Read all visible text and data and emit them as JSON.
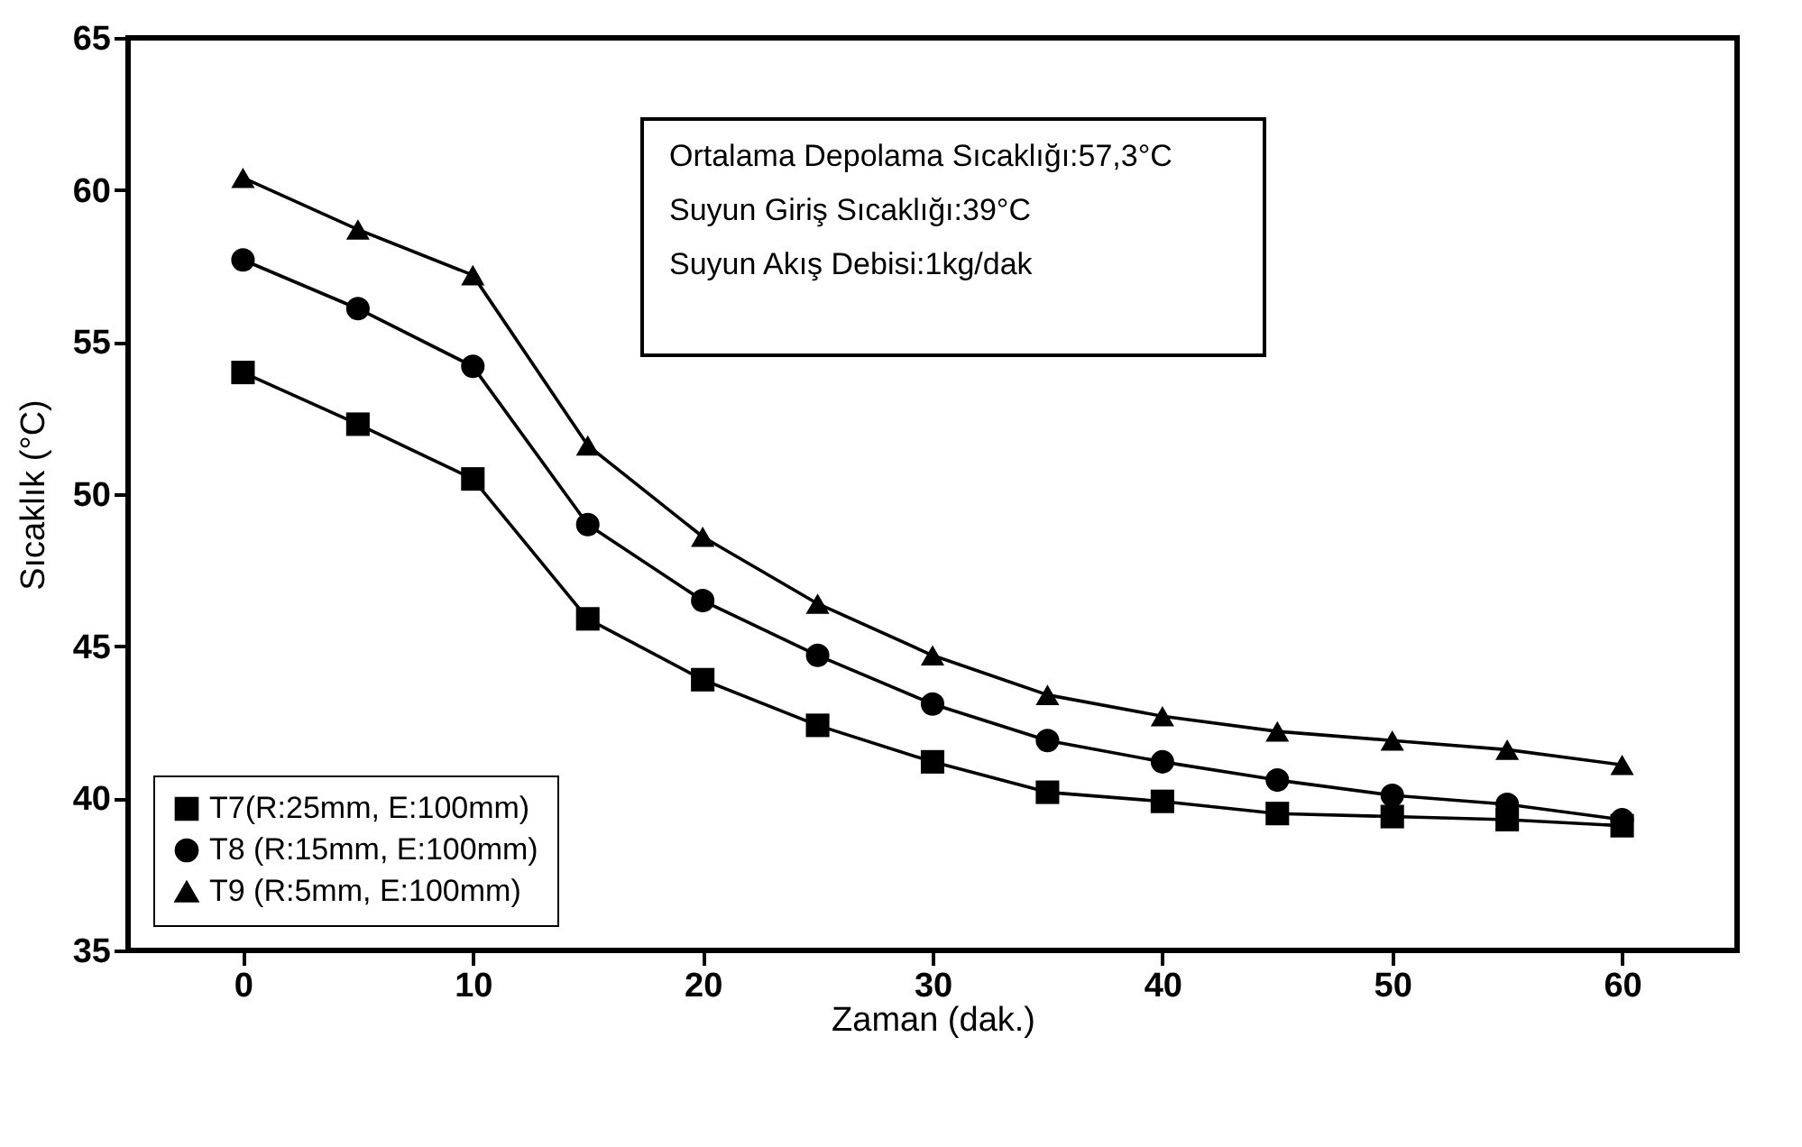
{
  "chart_data": {
    "type": "line",
    "xlabel": "Zaman (dak.)",
    "ylabel": "Sıcaklık (°C)",
    "x": [
      0,
      5,
      10,
      15,
      20,
      25,
      30,
      35,
      40,
      45,
      50,
      55,
      60
    ],
    "xlim": [
      -5,
      65
    ],
    "xticks": [
      0,
      10,
      20,
      30,
      40,
      50,
      60
    ],
    "ylim": [
      35,
      65
    ],
    "yticks": [
      35,
      40,
      45,
      50,
      55,
      60,
      65
    ],
    "legend": "bottom left",
    "grid": false,
    "line_style": "solid",
    "annotations": [
      "Ortalama Depolama Sıcaklığı:57,3°C",
      "Suyun Giriş Sıcaklığı:39°C",
      "Suyun Akış Debisi:1kg/dak"
    ],
    "series": [
      {
        "name": "T7(R:25mm, E:100mm)",
        "color": "#000000",
        "marker": "square",
        "values": [
          54.0,
          52.3,
          50.5,
          45.9,
          43.9,
          42.4,
          41.2,
          40.2,
          39.9,
          39.5,
          39.4,
          39.3,
          39.1
        ]
      },
      {
        "name": "T8 (R:15mm, E:100mm)",
        "color": "#000000",
        "marker": "circle",
        "values": [
          57.7,
          56.1,
          54.2,
          49.0,
          46.5,
          44.7,
          43.1,
          41.9,
          41.2,
          40.6,
          40.1,
          39.8,
          39.3
        ]
      },
      {
        "name": "T9 (R:5mm, E:100mm)",
        "color": "#000000",
        "marker": "triangle",
        "values": [
          60.4,
          58.7,
          57.2,
          51.6,
          48.6,
          46.4,
          44.7,
          43.4,
          42.7,
          42.2,
          41.9,
          41.6,
          41.1
        ]
      }
    ]
  }
}
